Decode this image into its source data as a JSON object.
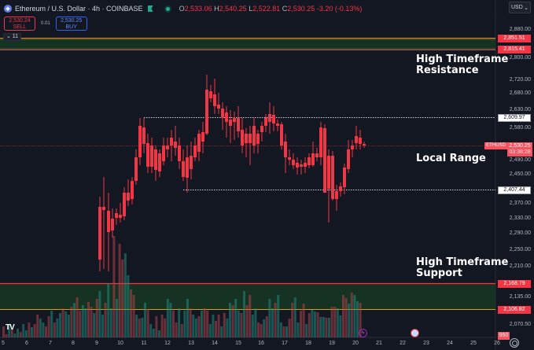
{
  "header": {
    "symbol_title": "Ethereum / U.S. Dollar · 4h · COINBASE",
    "ohlc": {
      "open_label": "O",
      "open": "2,533.06",
      "high_label": "H",
      "high": "2,540.25",
      "low_label": "L",
      "low": "2,522.81",
      "close_label": "C",
      "close": "2,530.25",
      "change": "-3.20 (-0.13%)"
    },
    "currency_button": "USD"
  },
  "trade": {
    "sell_price": "2,530.24",
    "sell_label": "SELL",
    "spread": "0.01",
    "buy_price": "2,530.25",
    "buy_label": "BUY"
  },
  "indicators_toggle": "⌄ 11",
  "annotations": {
    "resistance_line1": "High Timeframe",
    "resistance_line2": "Resistance",
    "range": "Local Range",
    "support_line1": "High Timeframe",
    "support_line2": "Support"
  },
  "price_axis": {
    "labels": [
      "2,880.00",
      "2,800.00",
      "2,720.00",
      "2,680.00",
      "2,630.00",
      "2,580.00",
      "2,490.00",
      "2,450.00",
      "2,370.00",
      "2,330.00",
      "2,290.00",
      "2,250.00",
      "2,210.00",
      "2,135.00",
      "2,070.50"
    ],
    "tags": {
      "resistance_top": "2,851.51",
      "resistance_bottom": "2,815.41",
      "range_top": "2,609.97",
      "current_price": "2,530.25",
      "countdown": "03:38:28",
      "symbol_tag": "ETHUSD",
      "range_bottom": "2,407.44",
      "support_top": "2,168.79",
      "support_bottom": "2,106.82",
      "volume": "950"
    }
  },
  "time_axis": {
    "labels": [
      "5",
      "6",
      "7",
      "8",
      "9",
      "10",
      "11",
      "12",
      "13",
      "14",
      "15",
      "16",
      "17",
      "18",
      "19",
      "20",
      "21",
      "22",
      "23",
      "24",
      "25",
      "26"
    ]
  },
  "colors": {
    "background": "#131722",
    "up": "#089981",
    "down": "#f23645",
    "zone_fill": "#163222",
    "zone_border": "#f23645",
    "zone_inner": "#4caf50"
  },
  "chart_data": {
    "type": "candlestick",
    "title": "Ethereum / U.S. Dollar · 4h · COINBASE",
    "ylim": [
      2050,
      2900
    ],
    "zones": [
      {
        "name": "High Timeframe Resistance",
        "from": 2815.41,
        "to": 2851.51
      },
      {
        "name": "High Timeframe Support",
        "from": 2106.82,
        "to": 2168.79
      }
    ],
    "range_lines": [
      2609.97,
      2407.44
    ],
    "last_price": 2530.25
  }
}
